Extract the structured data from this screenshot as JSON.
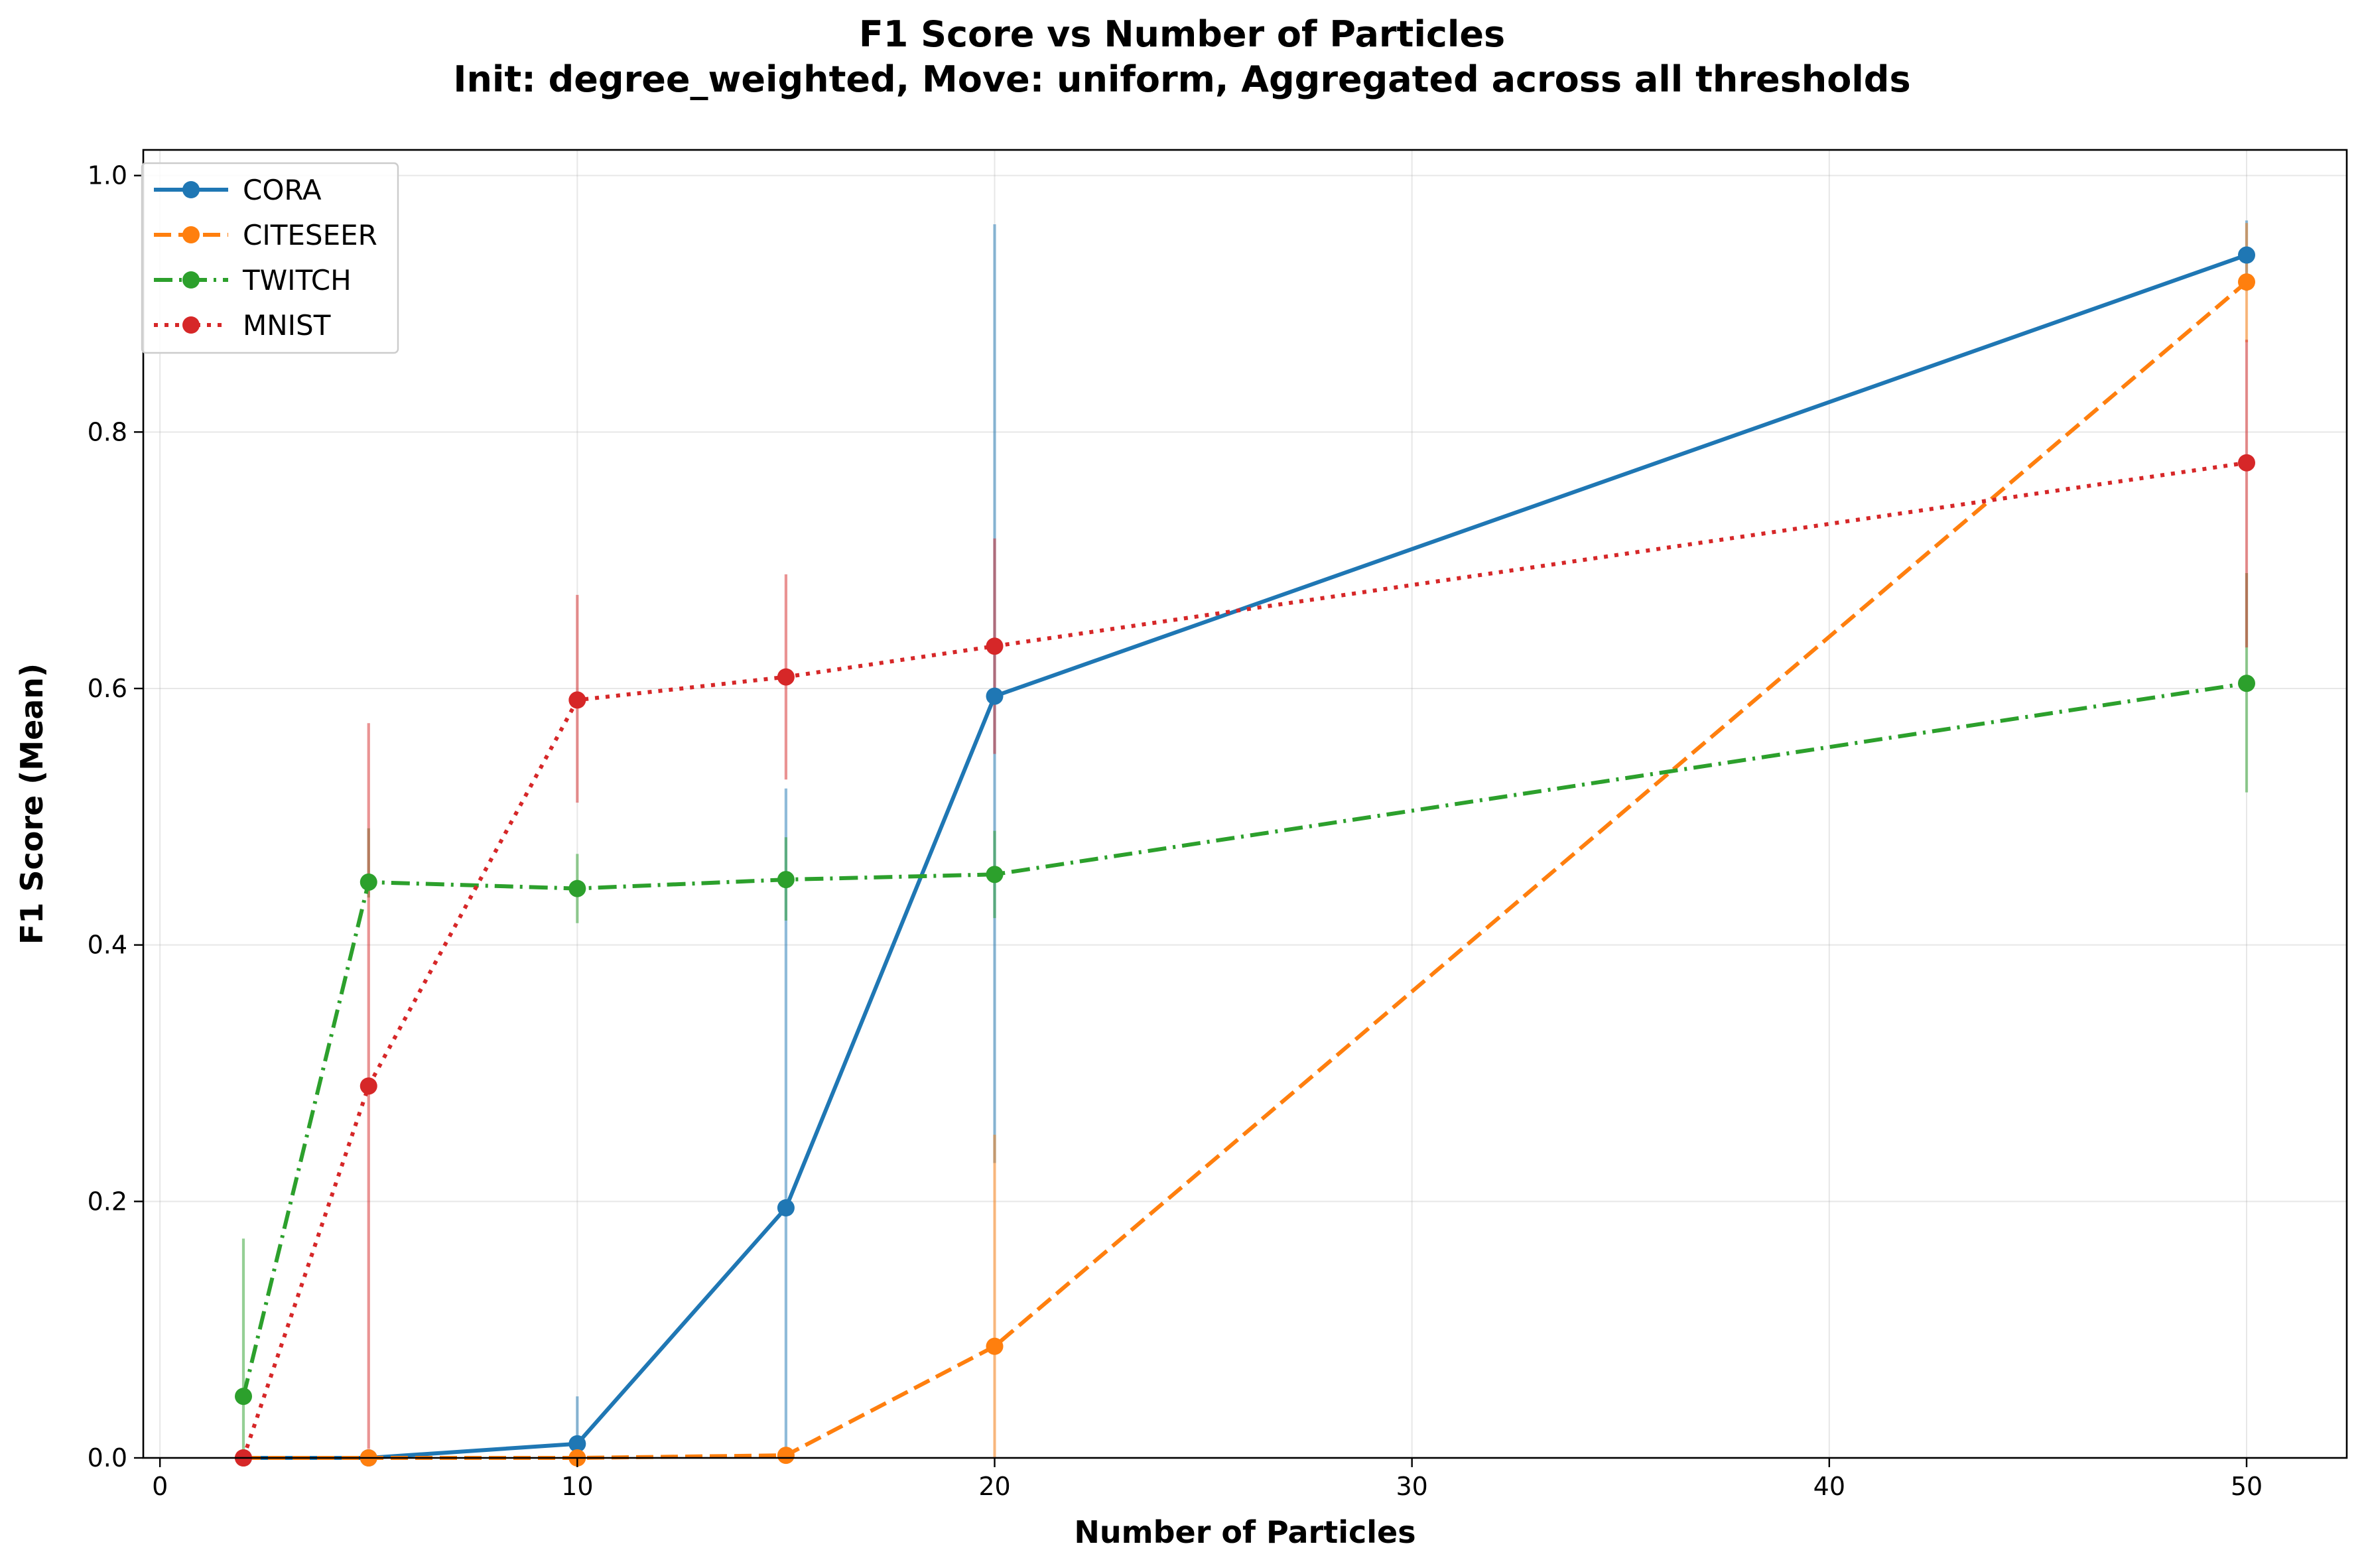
{
  "chart_data": {
    "type": "line",
    "title": "F1 Score vs Number of Particles",
    "subtitle": "Init: degree_weighted, Move: uniform, Aggregated across all thresholds",
    "xlabel": "Number of Particles",
    "ylabel": "F1 Score (Mean)",
    "xlim": [
      -0.4,
      52.4
    ],
    "ylim": [
      0.0,
      1.02
    ],
    "x_ticks": [
      0,
      10,
      20,
      30,
      40,
      50
    ],
    "y_ticks": [
      0.0,
      0.2,
      0.4,
      0.6,
      0.8,
      1.0
    ],
    "x_tick_labels": [
      "0",
      "10",
      "20",
      "30",
      "40",
      "50"
    ],
    "y_tick_labels": [
      "0.0",
      "0.2",
      "0.4",
      "0.6",
      "0.8",
      "1.0"
    ],
    "grid": true,
    "legend_position": "top-left",
    "x": [
      2,
      5,
      10,
      15,
      20,
      50
    ],
    "series": [
      {
        "name": "CORA",
        "color": "#1f77b4",
        "line_style": "solid",
        "values": [
          0.0,
          0.0,
          0.011,
          0.195,
          0.594,
          0.938
        ],
        "error_low": [
          0.0,
          0.0,
          0.0,
          0.0,
          0.23,
          0.91
        ],
        "error_high": [
          0.0,
          0.0,
          0.048,
          0.522,
          0.962,
          0.965
        ]
      },
      {
        "name": "CITESEER",
        "color": "#ff7f0e",
        "line_style": "dashed",
        "values": [
          0.0,
          0.0,
          0.0,
          0.002,
          0.087,
          0.917
        ],
        "error_low": [
          0.0,
          0.0,
          0.0,
          0.0,
          0.0,
          0.87
        ],
        "error_high": [
          0.0,
          0.0,
          0.0,
          0.004,
          0.252,
          0.963
        ]
      },
      {
        "name": "TWITCH",
        "color": "#2ca02c",
        "line_style": "dashdot",
        "values": [
          0.048,
          0.449,
          0.444,
          0.451,
          0.455,
          0.604
        ],
        "error_low": [
          0.0,
          0.437,
          0.417,
          0.419,
          0.421,
          0.519
        ],
        "error_high": [
          0.171,
          0.491,
          0.471,
          0.484,
          0.489,
          0.69
        ]
      },
      {
        "name": "MNIST",
        "color": "#d62728",
        "line_style": "dotted",
        "values": [
          0.0,
          0.29,
          0.591,
          0.609,
          0.633,
          0.776
        ],
        "error_low": [
          0.0,
          0.007,
          0.511,
          0.529,
          0.549,
          0.632
        ],
        "error_high": [
          0.0,
          0.573,
          0.673,
          0.689,
          0.717,
          0.872
        ]
      }
    ]
  }
}
